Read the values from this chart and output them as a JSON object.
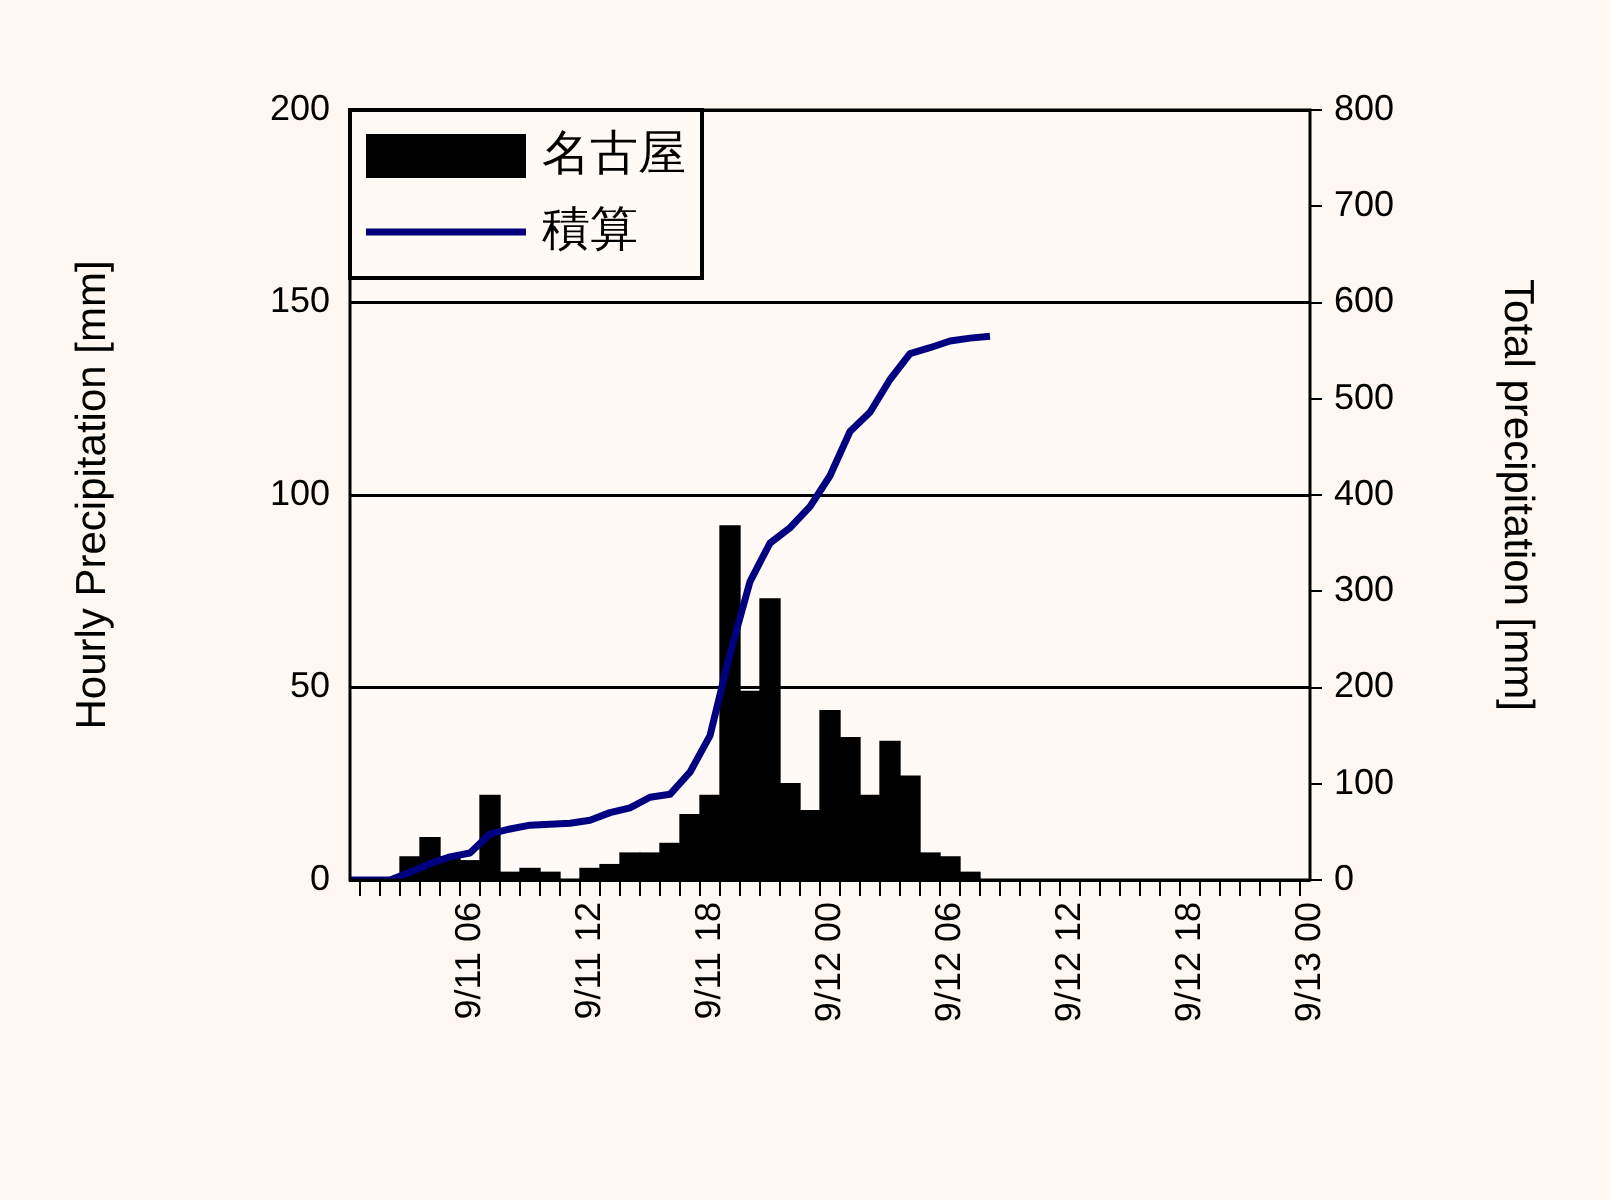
{
  "chart_data": {
    "type": "bar",
    "ylabel": "Hourly Precipitation [mm]",
    "y2label": "Total precipitation [mm]",
    "categories": [
      null,
      null,
      null,
      null,
      null,
      null,
      "9/11 06",
      null,
      null,
      null,
      null,
      null,
      "9/11 12",
      null,
      null,
      null,
      null,
      null,
      "9/11 18",
      null,
      null,
      null,
      null,
      null,
      "9/12 00",
      null,
      null,
      null,
      null,
      null,
      "9/12 06",
      null,
      null,
      null,
      null,
      null,
      "9/12 12",
      null,
      null,
      null,
      null,
      null,
      "9/12 18",
      null,
      null,
      null,
      null,
      null,
      "9/13 00"
    ],
    "ylim": [
      0,
      200
    ],
    "yticks": [
      0,
      50,
      100,
      150,
      200
    ],
    "y2lim": [
      0,
      800
    ],
    "y2ticks": [
      0,
      100,
      200,
      300,
      400,
      500,
      600,
      700,
      800
    ],
    "grid": "y",
    "legend": "top left",
    "series": [
      {
        "name": "名古屋",
        "color": "#000000",
        "values": [
          null,
          null,
          null,
          6,
          11,
          6,
          5,
          22,
          2,
          3,
          2,
          0,
          3,
          4,
          7,
          7,
          9.5,
          17,
          22,
          92,
          49,
          73,
          25,
          18,
          44,
          37,
          22,
          36,
          27,
          7,
          6,
          2,
          null,
          null,
          null,
          null,
          null,
          null,
          null,
          null,
          null,
          null,
          null,
          null,
          null,
          null,
          null,
          null,
          null
        ]
      },
      {
        "type": "line",
        "axis": "y2",
        "name": "積算",
        "color": "#000080",
        "values": [
          0,
          0,
          0,
          8,
          17,
          24,
          28,
          48,
          53,
          57,
          58,
          59,
          62,
          70,
          75,
          86,
          89,
          112,
          150,
          235,
          310,
          350,
          366,
          388,
          420,
          466,
          486,
          520,
          547,
          553,
          560,
          563,
          565,
          null,
          null,
          null,
          null,
          null,
          null,
          null,
          null,
          null,
          null,
          null,
          null,
          null,
          null,
          null,
          null
        ]
      }
    ]
  }
}
